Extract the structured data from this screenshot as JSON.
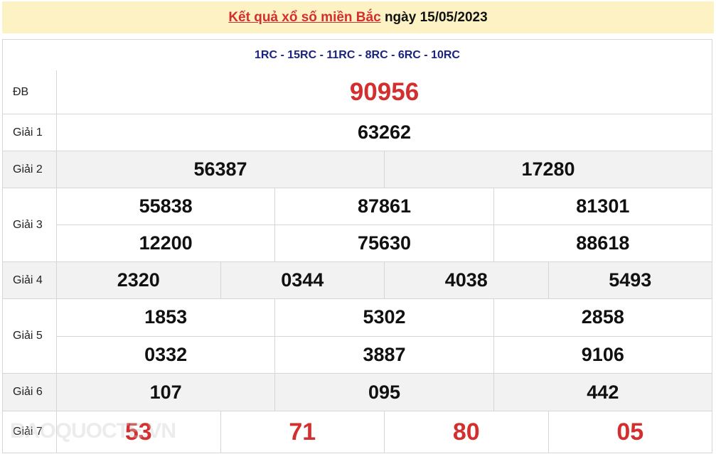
{
  "header": {
    "link": "Kết quả xổ số miền Bắc",
    "date": "ngày 15/05/2023"
  },
  "codes": "1RC - 15RC - 11RC - 8RC - 6RC - 10RC",
  "prizes": [
    {
      "label": "ĐB",
      "rows": [
        [
          "90956"
        ]
      ]
    },
    {
      "label": "Giải 1",
      "rows": [
        [
          "63262"
        ]
      ]
    },
    {
      "label": "Giải 2",
      "rows": [
        [
          "56387",
          "17280"
        ]
      ]
    },
    {
      "label": "Giải 3",
      "rows": [
        [
          "55838",
          "87861",
          "81301"
        ],
        [
          "12200",
          "75630",
          "88618"
        ]
      ]
    },
    {
      "label": "Giải 4",
      "rows": [
        [
          "2320",
          "0344",
          "4038",
          "5493"
        ]
      ]
    },
    {
      "label": "Giải 5",
      "rows": [
        [
          "1853",
          "5302",
          "2858"
        ],
        [
          "0332",
          "3887",
          "9106"
        ]
      ]
    },
    {
      "label": "Giải 6",
      "rows": [
        [
          "107",
          "095",
          "442"
        ]
      ]
    },
    {
      "label": "Giải 7",
      "rows": [
        [
          "53",
          "71",
          "80",
          "05"
        ]
      ]
    }
  ],
  "watermark": "BAOQUOCTE.VN",
  "colors": {
    "accent": "#d32f2f",
    "codes": "#1a237e",
    "header_bg": "#fdf2c4"
  }
}
